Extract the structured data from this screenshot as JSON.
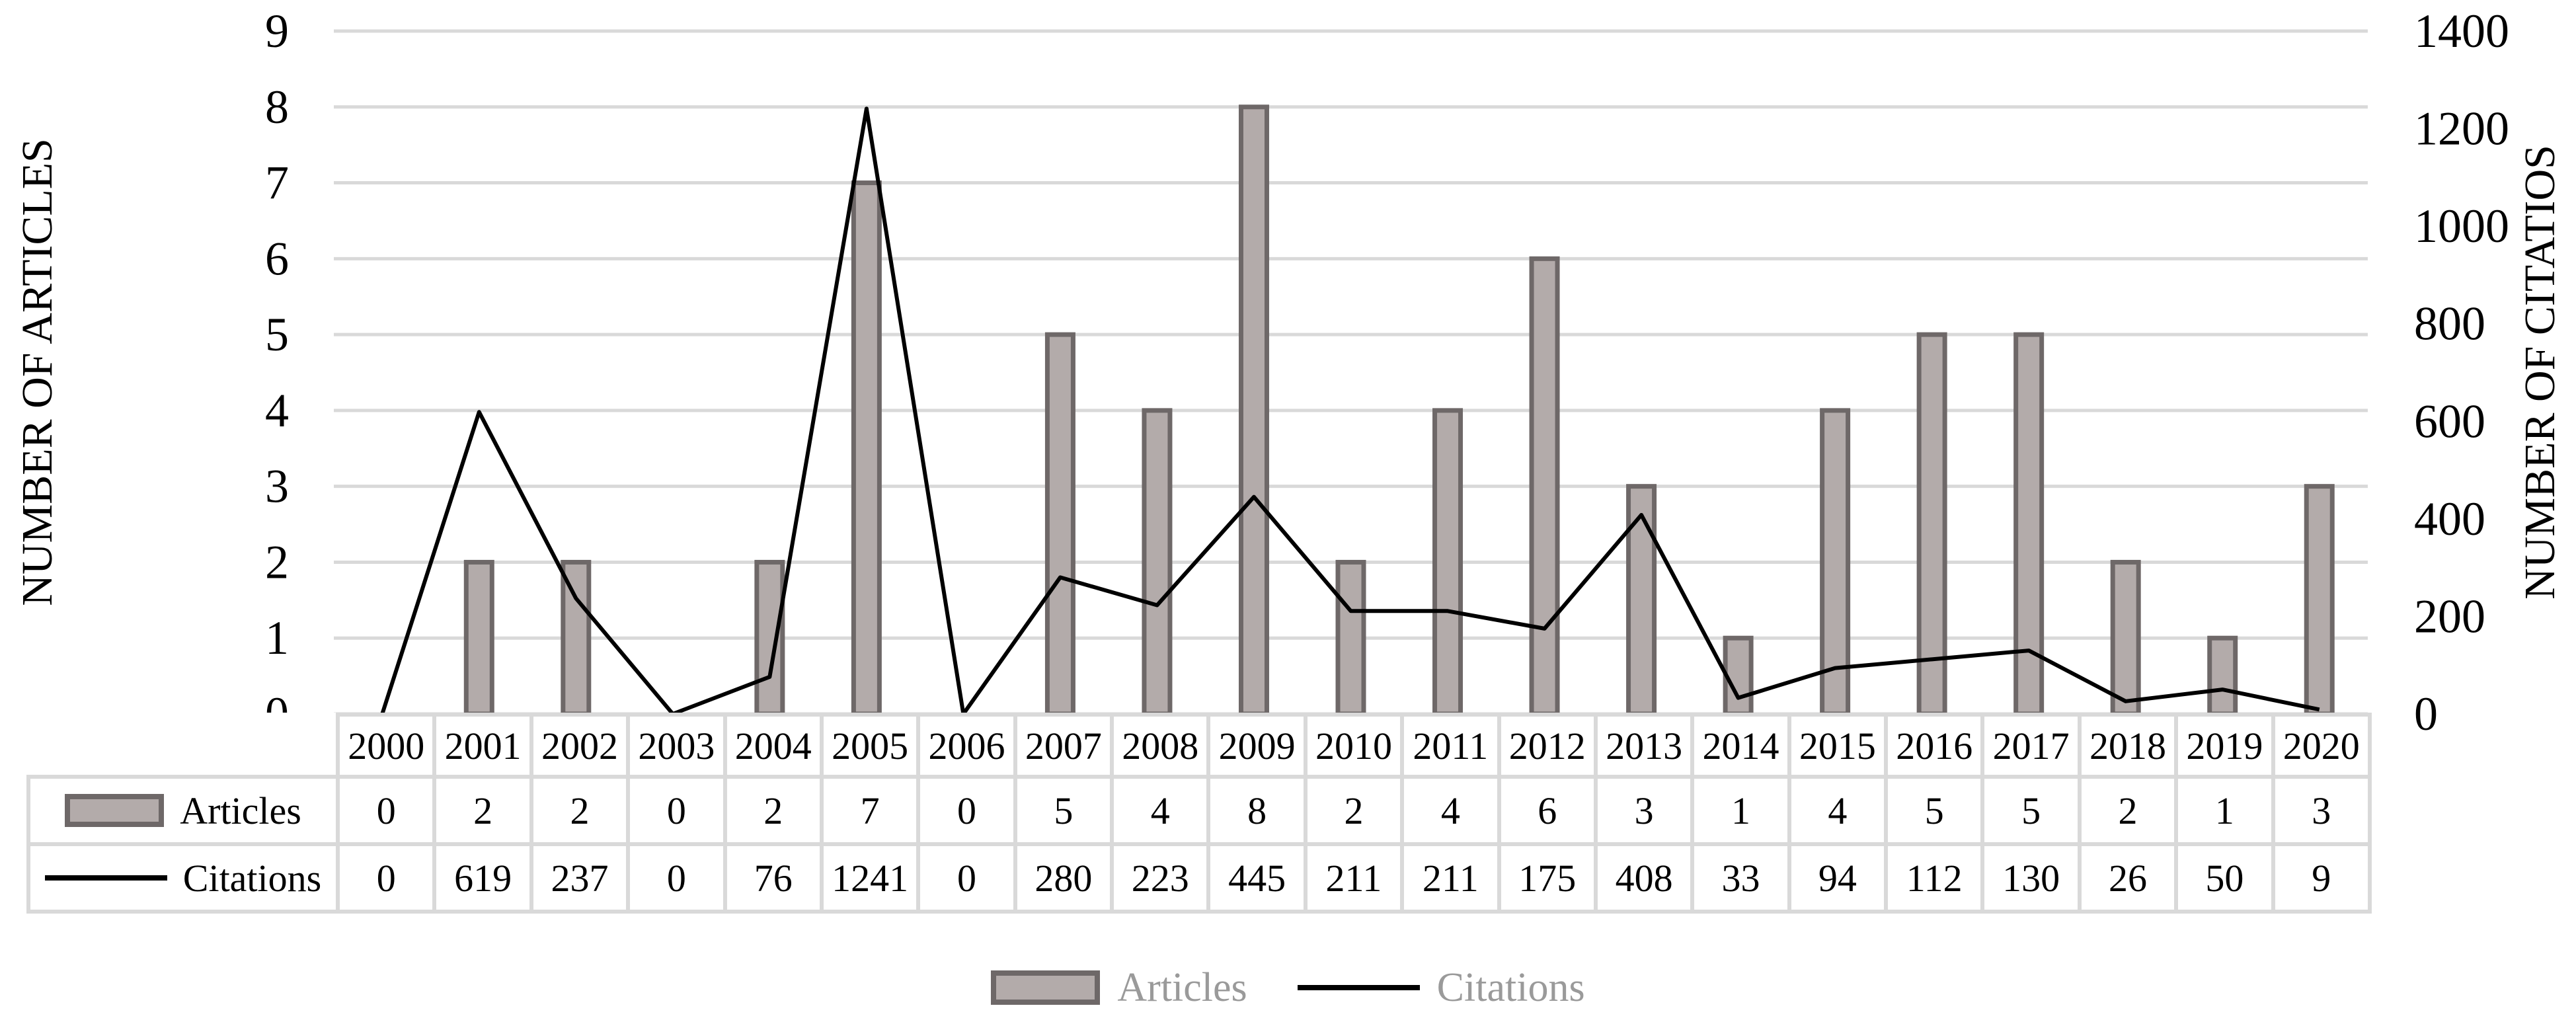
{
  "chart_data": {
    "type": "bar+line-combo",
    "categories": [
      "2000",
      "2001",
      "2002",
      "2003",
      "2004",
      "2005",
      "2006",
      "2007",
      "2008",
      "2009",
      "2010",
      "2011",
      "2012",
      "2013",
      "2014",
      "2015",
      "2016",
      "2017",
      "2018",
      "2019",
      "2020"
    ],
    "series": [
      {
        "name": "Articles",
        "type": "bar",
        "axis": "left",
        "values": [
          0,
          2,
          2,
          0,
          2,
          7,
          0,
          5,
          4,
          8,
          2,
          4,
          6,
          3,
          1,
          4,
          5,
          5,
          2,
          1,
          3
        ]
      },
      {
        "name": "Citations",
        "type": "line",
        "axis": "right",
        "values": [
          0,
          619,
          237,
          0,
          76,
          1241,
          0,
          280,
          223,
          445,
          211,
          211,
          175,
          408,
          33,
          94,
          112,
          130,
          26,
          50,
          9
        ]
      }
    ],
    "left_axis": {
      "title": "NUMBER OF ARTICLES",
      "min": 0,
      "max": 9,
      "ticks": [
        0,
        1,
        2,
        3,
        4,
        5,
        6,
        7,
        8,
        9
      ]
    },
    "right_axis": {
      "title": "NUMBER OF CITATIOS",
      "min": 0,
      "max": 1400,
      "ticks": [
        0,
        200,
        400,
        600,
        800,
        1000,
        1200,
        1400
      ]
    },
    "grid": "horizontal gridlines at left-axis integer ticks",
    "legend_position": "bottom",
    "data_table_attached": true,
    "colors": {
      "bar_fill": "#B3ABAA",
      "bar_border": "#6E6868",
      "line": "#000000",
      "gridline": "#D9D9D9",
      "table_border": "#D9D9D9",
      "text": "#000000",
      "bottom_legend_text": "#9A9A9A"
    }
  }
}
